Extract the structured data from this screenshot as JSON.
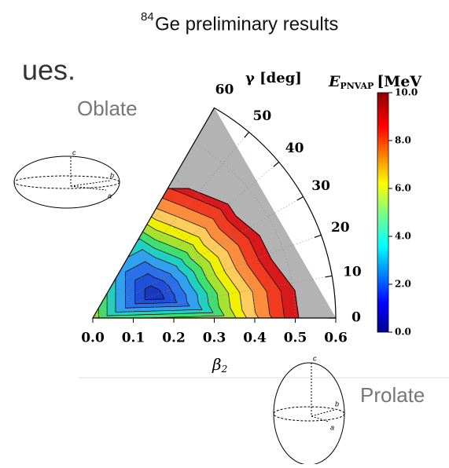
{
  "slide": {
    "text_fragment": "ues.",
    "title_mass": "84",
    "title": "Ge preliminary results",
    "oblate_label": "Oblate",
    "prolate_label": "Prolate",
    "oblate_axes": [
      "c",
      "b",
      "a"
    ],
    "prolate_axes": [
      "c",
      "b",
      "a"
    ]
  },
  "chart_data": {
    "type": "contour",
    "xlabel": "β",
    "xlabel_sub": "2",
    "theta_label": "γ [deg]",
    "colorbar_label": "E",
    "colorbar_label_sub": "PNVAP",
    "colorbar_unit": "[MeV",
    "xlim": [
      0,
      0.6
    ],
    "xticks": [
      {
        "value": 0,
        "label": "0.0"
      },
      {
        "value": 0.1,
        "label": "0.1"
      },
      {
        "value": 0.2,
        "label": "0.2"
      },
      {
        "value": 0.3,
        "label": "0.3"
      },
      {
        "value": 0.4,
        "label": "0.4"
      },
      {
        "value": 0.5,
        "label": "0.5"
      },
      {
        "value": 0.6,
        "label": "0.6"
      }
    ],
    "thetalim": [
      0,
      60
    ],
    "thetaticks": [
      0,
      10,
      20,
      30,
      40,
      50,
      60
    ],
    "clim": [
      0,
      10
    ],
    "cticks": [
      {
        "value": 0,
        "label": "0.0"
      },
      {
        "value": 2,
        "label": "2.0"
      },
      {
        "value": 4,
        "label": "4.0"
      },
      {
        "value": 6,
        "label": "6.0"
      },
      {
        "value": 8,
        "label": "8.0"
      },
      {
        "value": 10,
        "label": "10.0"
      }
    ],
    "colormap": "jet",
    "grid": true
  }
}
